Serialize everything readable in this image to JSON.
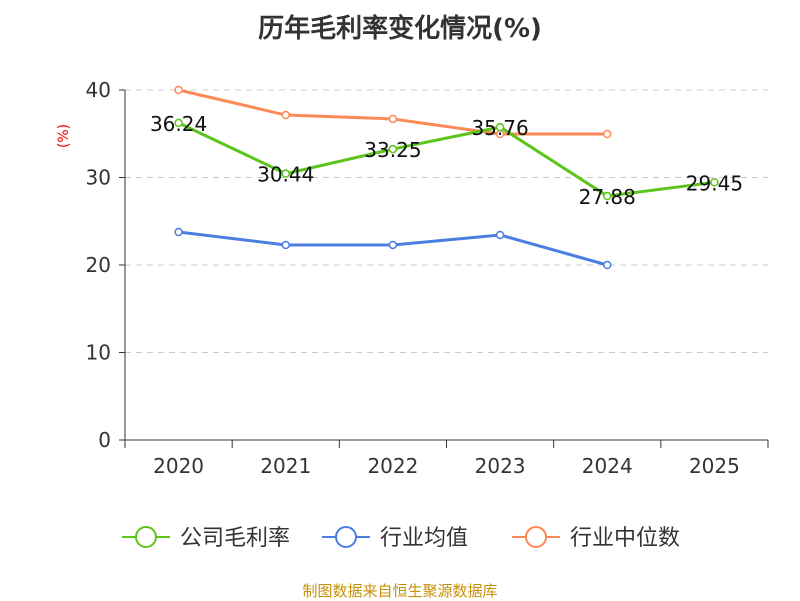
{
  "chart_data": {
    "type": "line",
    "title": "历年毛利率变化情况(%)",
    "ylabel": "(%)",
    "xlabel": "",
    "categories": [
      "2020",
      "2021",
      "2022",
      "2023",
      "2024",
      "2025"
    ],
    "ylim": [
      0,
      40
    ],
    "yticks": [
      "0",
      "10",
      "20",
      "30",
      "40"
    ],
    "grid": true,
    "legend_placement": "bottom",
    "series": [
      {
        "name": "公司毛利率",
        "color": "#5cc41b",
        "values": [
          36.24,
          30.44,
          33.25,
          35.76,
          27.88,
          29.45
        ],
        "labels": [
          "36.24",
          "30.44",
          "33.25",
          "35.76",
          "27.88",
          "29.45"
        ]
      },
      {
        "name": "行业均值",
        "color": "#4a7ee0",
        "values": [
          23.77,
          22.29,
          22.29,
          23.43,
          20.0,
          null
        ]
      },
      {
        "name": "行业中位数",
        "color": "#fc8a56",
        "values": [
          40.0,
          37.14,
          36.69,
          34.97,
          34.97,
          null
        ]
      }
    ]
  },
  "source": "制图数据来自恒生聚源数据库"
}
